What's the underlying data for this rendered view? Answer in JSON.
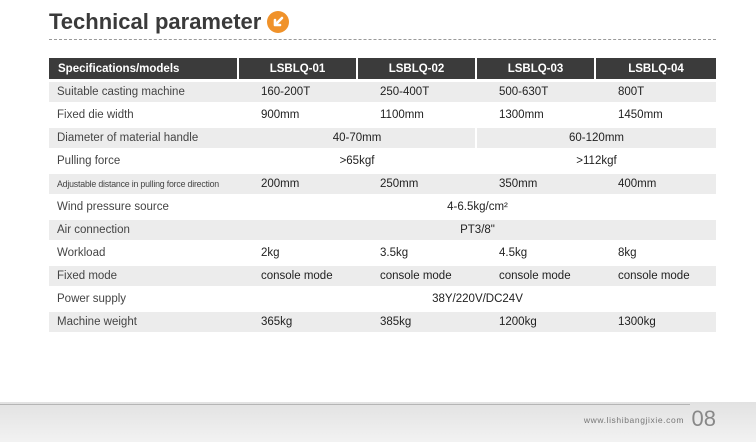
{
  "title": "Technical parameter",
  "header": {
    "first": "Specifications/models",
    "models": [
      "LSBLQ-01",
      "LSBLQ-02",
      "LSBLQ-03",
      "LSBLQ-04"
    ]
  },
  "rows": [
    {
      "label": "Suitable casting machine",
      "values": [
        "160-200T",
        "250-400T",
        "500-630T",
        "800T"
      ]
    },
    {
      "label": "Fixed die width",
      "values": [
        "900mm",
        "1100mm",
        "1300mm",
        "1450mm"
      ]
    },
    {
      "label": "Diameter of material handle",
      "pair": [
        "40-70mm",
        "60-120mm"
      ]
    },
    {
      "label": "Pulling force",
      "pair": [
        ">65kgf",
        ">112kgf"
      ]
    },
    {
      "label": "Adjustable distance in pulling force direction",
      "values": [
        "200mm",
        "250mm",
        "350mm",
        "400mm"
      ]
    },
    {
      "label": "Wind pressure source",
      "all": "4-6.5kg/cm²"
    },
    {
      "label": "Air connection",
      "all": "PT3/8\""
    },
    {
      "label": "Workload",
      "values": [
        "2kg",
        "3.5kg",
        "4.5kg",
        "8kg"
      ]
    },
    {
      "label": "Fixed mode",
      "values": [
        "console mode",
        "console mode",
        "console mode",
        "console mode"
      ]
    },
    {
      "label": "Power supply",
      "all": "38Y/220V/DC24V"
    },
    {
      "label": "Machine weight",
      "values": [
        "365kg",
        "385kg",
        "1200kg",
        "1300kg"
      ]
    }
  ],
  "footer": {
    "website": "www.lishibangjixie.com",
    "page": "08"
  },
  "colors": {
    "header_bg": "#3b3b3b",
    "row_shade": "#ececec",
    "icon": "#f0922a"
  },
  "icons": {
    "title_icon": "arrow-down-left-icon"
  }
}
